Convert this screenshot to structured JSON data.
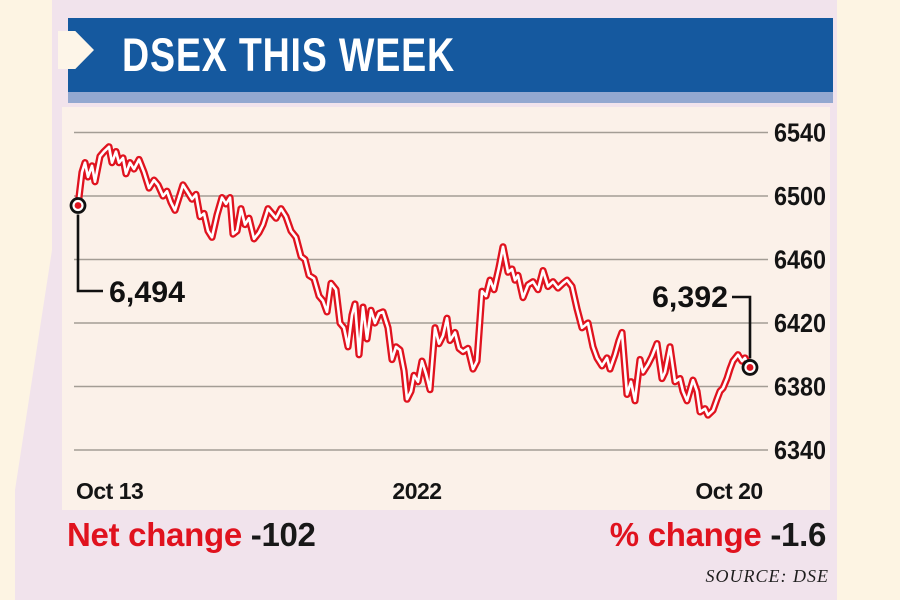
{
  "header": {
    "title": "DSEX THIS WEEK"
  },
  "colors": {
    "banner_blue": "#15599f",
    "banner_light_blue": "#93a8d0",
    "card_pink": "#f1e3ec",
    "plot_cream": "#fbf1e9",
    "page_cream": "#fdf4e3",
    "line_red": "#e0131f",
    "line_core_white": "#ffffff",
    "grid_gray": "#a39d95",
    "text_black": "#141414"
  },
  "chart_data": {
    "type": "line",
    "title": "DSEX THIS WEEK",
    "series_name": "DSEX index",
    "x_axis_labels": [
      "Oct 13",
      "2022",
      "Oct 20"
    ],
    "y_ticks": [
      6540,
      6500,
      6460,
      6420,
      6380,
      6340
    ],
    "ylim": [
      6340,
      6560
    ],
    "grid": true,
    "start_annotation": "6,494",
    "end_annotation": "6,392",
    "start_value": 6494,
    "end_value": 6392,
    "points": [
      [
        16,
        6494
      ],
      [
        20,
        6515
      ],
      [
        23,
        6521
      ],
      [
        26,
        6512
      ],
      [
        30,
        6519
      ],
      [
        33,
        6509
      ],
      [
        38,
        6525
      ],
      [
        42,
        6528
      ],
      [
        47,
        6531
      ],
      [
        50,
        6521
      ],
      [
        54,
        6528
      ],
      [
        57,
        6521
      ],
      [
        61,
        6524
      ],
      [
        64,
        6514
      ],
      [
        68,
        6521
      ],
      [
        72,
        6517
      ],
      [
        77,
        6523
      ],
      [
        82,
        6515
      ],
      [
        87,
        6505
      ],
      [
        92,
        6510
      ],
      [
        96,
        6507
      ],
      [
        101,
        6500
      ],
      [
        105,
        6503
      ],
      [
        109,
        6496
      ],
      [
        113,
        6491
      ],
      [
        117,
        6499
      ],
      [
        121,
        6507
      ],
      [
        125,
        6503
      ],
      [
        130,
        6498
      ],
      [
        134,
        6501
      ],
      [
        138,
        6487
      ],
      [
        142,
        6489
      ],
      [
        146,
        6478
      ],
      [
        150,
        6474
      ],
      [
        155,
        6488
      ],
      [
        160,
        6499
      ],
      [
        164,
        6495
      ],
      [
        168,
        6499
      ],
      [
        171,
        6476
      ],
      [
        175,
        6478
      ],
      [
        179,
        6492
      ],
      [
        183,
        6482
      ],
      [
        187,
        6486
      ],
      [
        192,
        6473
      ],
      [
        197,
        6477
      ],
      [
        201,
        6482
      ],
      [
        206,
        6492
      ],
      [
        210,
        6489
      ],
      [
        214,
        6486
      ],
      [
        219,
        6492
      ],
      [
        224,
        6487
      ],
      [
        229,
        6478
      ],
      [
        234,
        6474
      ],
      [
        239,
        6462
      ],
      [
        243,
        6460
      ],
      [
        247,
        6450
      ],
      [
        252,
        6448
      ],
      [
        257,
        6437
      ],
      [
        261,
        6434
      ],
      [
        265,
        6427
      ],
      [
        269,
        6445
      ],
      [
        274,
        6441
      ],
      [
        278,
        6420
      ],
      [
        282,
        6417
      ],
      [
        286,
        6405
      ],
      [
        290,
        6425
      ],
      [
        293,
        6432
      ],
      [
        297,
        6400
      ],
      [
        301,
        6430
      ],
      [
        305,
        6410
      ],
      [
        309,
        6428
      ],
      [
        313,
        6420
      ],
      [
        317,
        6426
      ],
      [
        321,
        6427
      ],
      [
        326,
        6417
      ],
      [
        330,
        6397
      ],
      [
        334,
        6405
      ],
      [
        338,
        6403
      ],
      [
        342,
        6390
      ],
      [
        345,
        6372
      ],
      [
        349,
        6377
      ],
      [
        352,
        6387
      ],
      [
        356,
        6383
      ],
      [
        360,
        6396
      ],
      [
        364,
        6388
      ],
      [
        368,
        6378
      ],
      [
        373,
        6417
      ],
      [
        377,
        6407
      ],
      [
        381,
        6412
      ],
      [
        385,
        6423
      ],
      [
        388,
        6409
      ],
      [
        393,
        6414
      ],
      [
        397,
        6404
      ],
      [
        401,
        6402
      ],
      [
        406,
        6404
      ],
      [
        411,
        6391
      ],
      [
        415,
        6396
      ],
      [
        420,
        6440
      ],
      [
        424,
        6437
      ],
      [
        428,
        6447
      ],
      [
        432,
        6441
      ],
      [
        437,
        6455
      ],
      [
        441,
        6468
      ],
      [
        446,
        6452
      ],
      [
        450,
        6454
      ],
      [
        453,
        6447
      ],
      [
        456,
        6450
      ],
      [
        461,
        6436
      ],
      [
        466,
        6444
      ],
      [
        471,
        6446
      ],
      [
        476,
        6441
      ],
      [
        481,
        6453
      ],
      [
        486,
        6443
      ],
      [
        491,
        6446
      ],
      [
        496,
        6442
      ],
      [
        501,
        6445
      ],
      [
        505,
        6447
      ],
      [
        510,
        6443
      ],
      [
        515,
        6429
      ],
      [
        520,
        6417
      ],
      [
        526,
        6420
      ],
      [
        531,
        6405
      ],
      [
        535,
        6398
      ],
      [
        540,
        6393
      ],
      [
        545,
        6398
      ],
      [
        548,
        6391
      ],
      [
        553,
        6400
      ],
      [
        557,
        6409
      ],
      [
        560,
        6414
      ],
      [
        565,
        6375
      ],
      [
        569,
        6383
      ],
      [
        573,
        6371
      ],
      [
        578,
        6397
      ],
      [
        581,
        6389
      ],
      [
        586,
        6394
      ],
      [
        590,
        6399
      ],
      [
        595,
        6407
      ],
      [
        600,
        6385
      ],
      [
        603,
        6389
      ],
      [
        608,
        6405
      ],
      [
        613,
        6383
      ],
      [
        618,
        6385
      ],
      [
        621,
        6377
      ],
      [
        625,
        6371
      ],
      [
        631,
        6384
      ],
      [
        635,
        6377
      ],
      [
        638,
        6364
      ],
      [
        643,
        6366
      ],
      [
        646,
        6362
      ],
      [
        651,
        6365
      ],
      [
        655,
        6372
      ],
      [
        658,
        6377
      ],
      [
        661,
        6379
      ],
      [
        665,
        6385
      ],
      [
        668,
        6391
      ],
      [
        671,
        6396
      ],
      [
        676,
        6400
      ],
      [
        680,
        6396
      ],
      [
        683,
        6398
      ],
      [
        688,
        6392
      ]
    ]
  },
  "footer": {
    "net_change_label": "Net change",
    "net_change_value": "-102",
    "pct_change_label": "% change",
    "pct_change_value": "-1.6",
    "source": "SOURCE: DSE"
  }
}
